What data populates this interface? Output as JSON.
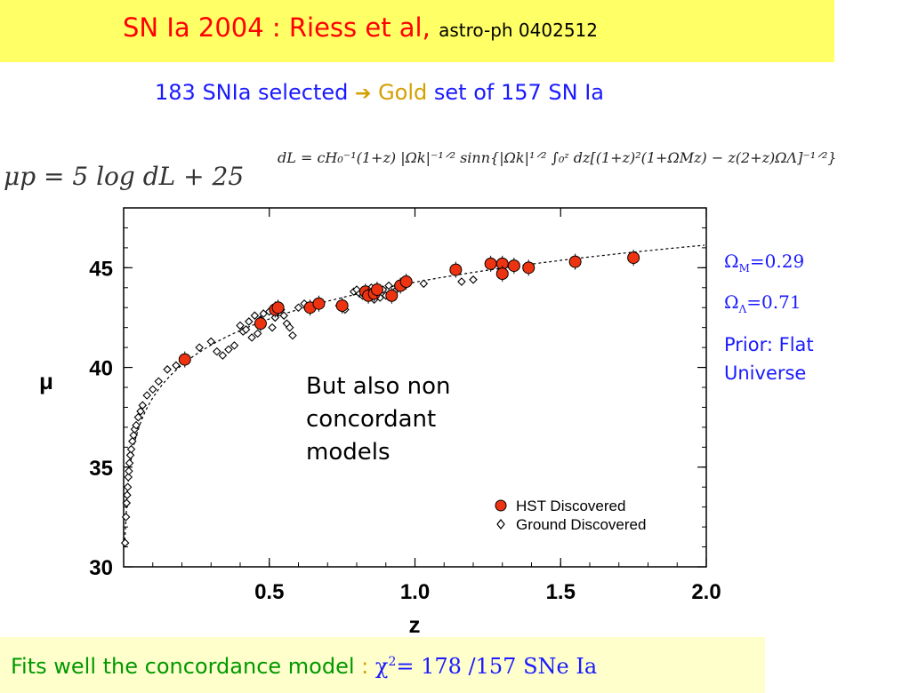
{
  "header": {
    "title_main": "SN Ia 2004 :  Riess et al,",
    "title_ref": "astro-ph 0402512",
    "subtitle_prefix": "183 SNIa selected",
    "subtitle_arrow": "➔",
    "subtitle_gold": "Gold",
    "subtitle_suffix": "set of 157 SN Ia"
  },
  "formulas": {
    "mu": "μp = 5 log dL + 25",
    "dl": "dL = cH₀⁻¹(1+z) |Ωk|⁻¹ᐟ² sinn{|Ωk|¹ᐟ² ∫₀ᶻ dz[(1+z)²(1+ΩMz) − z(2+z)ΩΛ]⁻¹ᐟ²}"
  },
  "params": {
    "omega_m_symbol": "Ω",
    "omega_m_sub": "M",
    "omega_m_value": "=0.29",
    "omega_l_symbol": "Ω",
    "omega_l_sub": "Λ",
    "omega_l_value": "=0.71",
    "prior": "Prior: Flat Universe"
  },
  "annotation": "But also non concordant models",
  "footer": {
    "text": "Fits well  the concordance model",
    "colon": ":",
    "chi": "χ",
    "chi_sup": "2",
    "chi_value": "= 178  /157 SNe Ia"
  },
  "colors": {
    "hst_fill": "#ee3311",
    "title_red": "#ff0000",
    "blue": "#1a1aff",
    "green": "#009900"
  },
  "chart_data": {
    "type": "scatter",
    "xlabel": "z",
    "ylabel": "μ",
    "xlim": [
      0,
      2.0
    ],
    "ylim": [
      30,
      48
    ],
    "xticks": [
      0.5,
      1.0,
      1.5,
      2.0
    ],
    "xtick_labels": [
      "0.5",
      "1.0",
      "1.5",
      "2.0"
    ],
    "yticks": [
      30,
      35,
      40,
      45
    ],
    "ytick_labels": [
      "30",
      "35",
      "40",
      "45"
    ],
    "grid": false,
    "legend_position": "bottom-right",
    "series": [
      {
        "name": "HST Discovered",
        "marker": "filled-circle",
        "x": [
          0.21,
          0.47,
          0.52,
          0.53,
          0.64,
          0.67,
          0.75,
          0.83,
          0.84,
          0.86,
          0.87,
          0.92,
          0.95,
          0.97,
          1.14,
          1.26,
          1.3,
          1.3,
          1.34,
          1.39,
          1.55,
          1.75
        ],
        "y": [
          40.4,
          42.2,
          42.9,
          43.0,
          43.0,
          43.2,
          43.1,
          43.8,
          43.6,
          43.7,
          43.9,
          43.6,
          44.1,
          44.3,
          44.9,
          45.2,
          45.2,
          44.7,
          45.1,
          45.0,
          45.3,
          45.5
        ]
      },
      {
        "name": "Ground Discovered",
        "marker": "open-diamond",
        "x": [
          0.005,
          0.008,
          0.01,
          0.012,
          0.014,
          0.016,
          0.018,
          0.02,
          0.023,
          0.026,
          0.03,
          0.034,
          0.038,
          0.043,
          0.05,
          0.058,
          0.065,
          0.08,
          0.1,
          0.12,
          0.15,
          0.18,
          0.26,
          0.3,
          0.32,
          0.34,
          0.36,
          0.38,
          0.4,
          0.41,
          0.42,
          0.43,
          0.44,
          0.45,
          0.46,
          0.47,
          0.48,
          0.5,
          0.51,
          0.52,
          0.54,
          0.55,
          0.56,
          0.57,
          0.58,
          0.6,
          0.62,
          0.74,
          0.76,
          0.79,
          0.8,
          0.81,
          0.82,
          0.83,
          0.85,
          0.86,
          0.87,
          0.88,
          0.89,
          0.9,
          0.91,
          0.93,
          0.94,
          1.03,
          1.16,
          1.2
        ],
        "y": [
          31.2,
          32.5,
          33.2,
          33.6,
          34.0,
          34.5,
          34.8,
          35.2,
          35.6,
          35.9,
          36.3,
          36.6,
          36.9,
          37.1,
          37.5,
          37.8,
          38.1,
          38.6,
          38.9,
          39.3,
          39.9,
          40.1,
          41.0,
          41.3,
          40.8,
          40.6,
          40.9,
          41.1,
          42.1,
          41.8,
          41.9,
          42.3,
          41.5,
          42.6,
          41.7,
          42.4,
          42.7,
          42.8,
          42.0,
          42.5,
          42.9,
          42.6,
          42.2,
          42.0,
          41.6,
          43.0,
          43.2,
          43.1,
          42.9,
          43.8,
          43.9,
          43.7,
          43.6,
          43.9,
          44.0,
          43.4,
          43.8,
          43.5,
          43.9,
          43.6,
          44.1,
          43.8,
          44.1,
          44.2,
          44.3,
          44.4
        ]
      }
    ]
  }
}
